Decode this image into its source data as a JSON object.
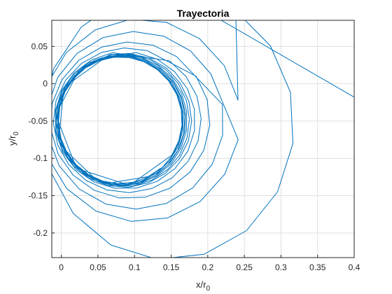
{
  "chart_data": {
    "type": "line",
    "title": "Trayectoria",
    "xlabel": {
      "base": "x/r",
      "sub": "0"
    },
    "ylabel": {
      "base": "y/r",
      "sub": "0"
    },
    "xlim": [
      -0.013,
      0.4
    ],
    "ylim": [
      -0.233,
      0.085
    ],
    "xticks": [
      0,
      0.05,
      0.1,
      0.15,
      0.2,
      0.25,
      0.3,
      0.35,
      0.4
    ],
    "xtick_labels": [
      "0",
      "0.05",
      "0.1",
      "0.15",
      "0.2",
      "0.25",
      "0.3",
      "0.35",
      "0.4"
    ],
    "yticks": [
      -0.2,
      -0.15,
      -0.1,
      -0.05,
      0,
      0.05
    ],
    "ytick_labels": [
      "-0.2",
      "-0.15",
      "-0.1",
      "-0.05",
      "0",
      "0.05"
    ],
    "grid": true,
    "line_color": "#0072bd",
    "series": [
      {
        "loops": [
          {
            "rx": 0.172,
            "ry": 0.181,
            "cx": 0.146,
            "cy": -0.055,
            "points": 16,
            "start": 1.57,
            "arc": 6.1,
            "turns": 0.18,
            "phase": 0.0
          },
          {
            "rx": 0.136,
            "ry": 0.136,
            "cx": 0.108,
            "cy": -0.049,
            "points": 17,
            "start": 0.0,
            "arc": 6.26,
            "turns": 0.0,
            "phase": 0.2
          },
          {
            "rx": 0.121,
            "ry": 0.119,
            "cx": 0.101,
            "cy": -0.049,
            "points": 18,
            "start": 0.0,
            "arc": 6.26,
            "turns": 0.0,
            "phase": 0.55
          },
          {
            "rx": 0.109,
            "ry": 0.105,
            "cx": 0.094,
            "cy": -0.049,
            "points": 19,
            "start": 0.0,
            "arc": 6.26,
            "turns": 0.0,
            "phase": 0.95
          },
          {
            "rx": 0.101,
            "ry": 0.097,
            "cx": 0.09,
            "cy": -0.049,
            "points": 20,
            "start": 0.0,
            "arc": 6.26,
            "turns": 0.0,
            "phase": 1.3
          },
          {
            "rx": 0.096,
            "ry": 0.092,
            "cx": 0.087,
            "cy": -0.049,
            "points": 20,
            "start": 0.0,
            "arc": 6.26,
            "turns": 0.0,
            "phase": 1.75
          },
          {
            "rx": 0.093,
            "ry": 0.09,
            "cx": 0.085,
            "cy": -0.049,
            "points": 21,
            "start": 0.0,
            "arc": 6.26,
            "turns": 0.0,
            "phase": 2.1
          },
          {
            "rx": 0.091,
            "ry": 0.089,
            "cx": 0.084,
            "cy": -0.049,
            "points": 22,
            "start": 0.0,
            "arc": 6.26,
            "turns": 0.0,
            "phase": 2.6
          },
          {
            "rx": 0.089,
            "ry": 0.088,
            "cx": 0.083,
            "cy": -0.049,
            "points": 22,
            "start": 0.0,
            "arc": 6.26,
            "turns": 0.0,
            "phase": 3.0
          },
          {
            "rx": 0.088,
            "ry": 0.087,
            "cx": 0.082,
            "cy": -0.049,
            "points": 23,
            "start": 0.0,
            "arc": 6.26,
            "turns": 0.0,
            "phase": 3.4
          },
          {
            "rx": 0.087,
            "ry": 0.087,
            "cx": 0.082,
            "cy": -0.049,
            "points": 23,
            "start": 0.0,
            "arc": 6.26,
            "turns": 0.0,
            "phase": 3.9
          },
          {
            "rx": 0.086,
            "ry": 0.086,
            "cx": 0.081,
            "cy": -0.049,
            "points": 24,
            "start": 0.0,
            "arc": 6.26,
            "turns": 0.0,
            "phase": 4.3
          },
          {
            "rx": 0.086,
            "ry": 0.086,
            "cx": 0.081,
            "cy": -0.049,
            "points": 24,
            "start": 0.0,
            "arc": 6.26,
            "turns": 0.0,
            "phase": 4.8
          },
          {
            "rx": 0.085,
            "ry": 0.085,
            "cx": 0.081,
            "cy": -0.049,
            "points": 25,
            "start": 0.0,
            "arc": 6.26,
            "turns": 0.0,
            "phase": 5.2
          },
          {
            "rx": 0.085,
            "ry": 0.085,
            "cx": 0.08,
            "cy": -0.049,
            "points": 25,
            "start": 0.0,
            "arc": 6.26,
            "turns": 0.0,
            "phase": 5.7
          }
        ]
      }
    ]
  }
}
